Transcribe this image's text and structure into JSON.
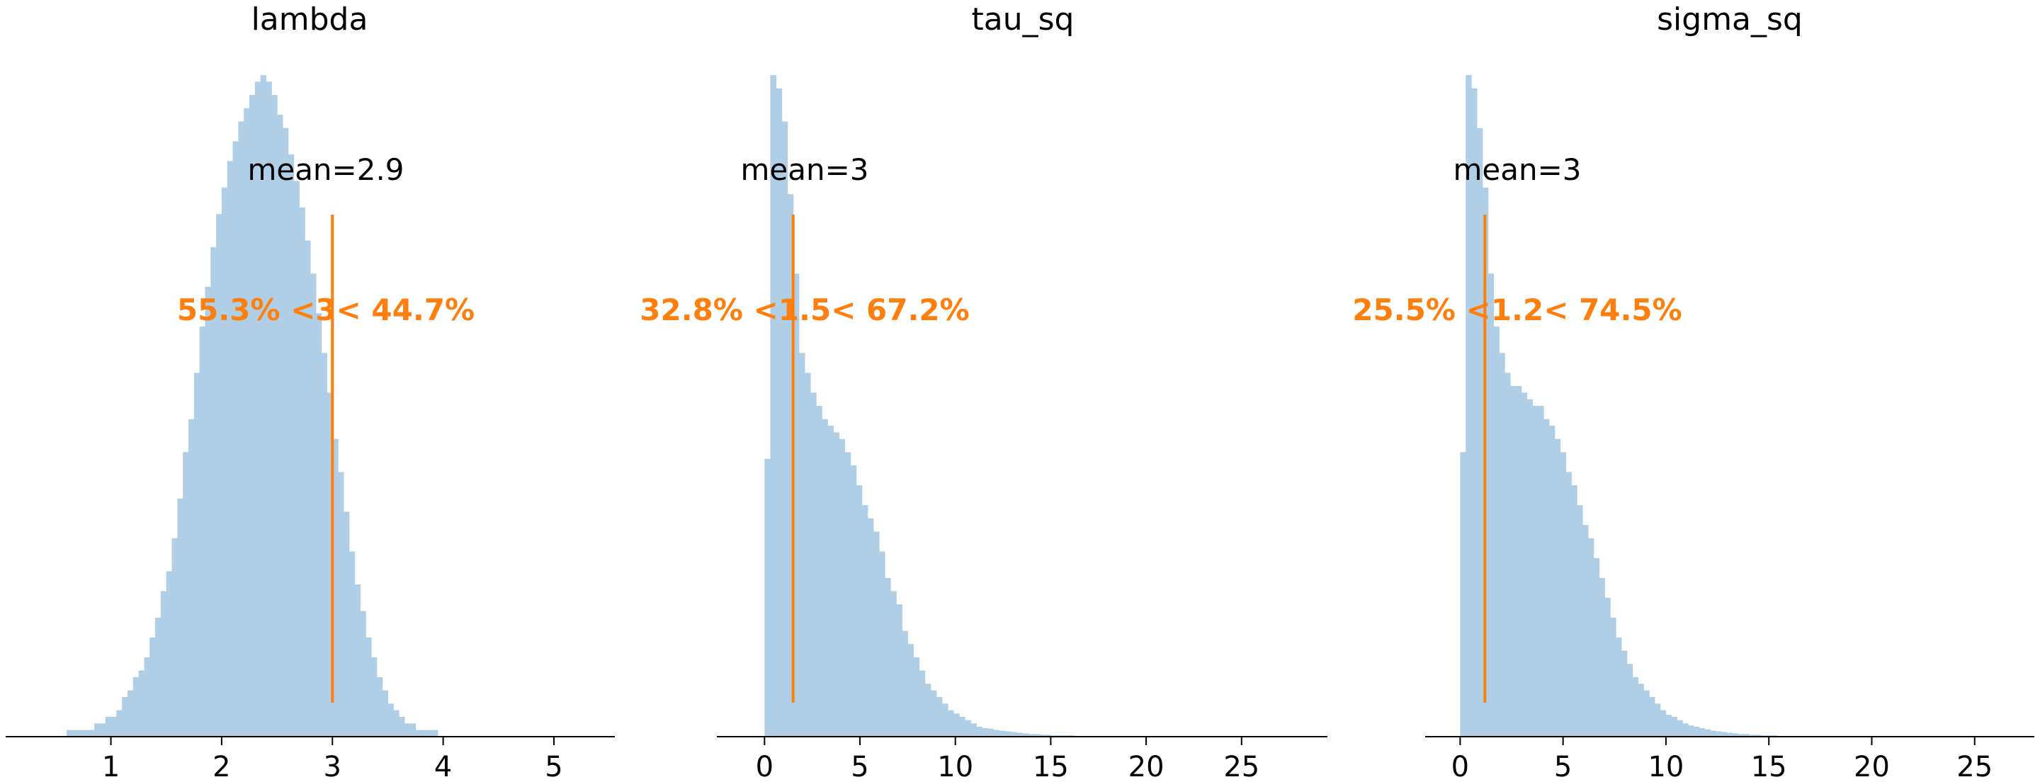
{
  "chart_data": [
    {
      "type": "bar",
      "title": "lambda",
      "xlabel": "",
      "ylabel": "",
      "xlim": [
        0.05,
        5.55
      ],
      "xticks": [
        1,
        2,
        3,
        4,
        5
      ],
      "bin_start": 0.3,
      "bin_width": 0.05,
      "values": [
        0.0,
        0.0,
        0.0,
        0.0,
        0.0,
        0.0,
        0.01,
        0.01,
        0.01,
        0.01,
        0.01,
        0.02,
        0.02,
        0.03,
        0.03,
        0.04,
        0.06,
        0.07,
        0.09,
        0.1,
        0.12,
        0.15,
        0.18,
        0.22,
        0.25,
        0.3,
        0.36,
        0.43,
        0.48,
        0.55,
        0.62,
        0.68,
        0.74,
        0.79,
        0.83,
        0.87,
        0.9,
        0.93,
        0.95,
        0.97,
        0.99,
        1.0,
        0.99,
        0.97,
        0.94,
        0.92,
        0.88,
        0.84,
        0.8,
        0.75,
        0.7,
        0.64,
        0.58,
        0.52,
        0.45,
        0.4,
        0.34,
        0.28,
        0.23,
        0.19,
        0.15,
        0.12,
        0.09,
        0.07,
        0.05,
        0.04,
        0.03,
        0.02,
        0.02,
        0.01,
        0.01,
        0.01,
        0.01,
        0.0,
        0.0,
        0.0,
        0.0,
        0.0,
        0.0,
        0.0,
        0.0,
        0.0,
        0.0,
        0.0,
        0.0,
        0.0,
        0.0,
        0.0,
        0.0,
        0.0,
        0.0,
        0.0,
        0.0,
        0.0,
        0.0,
        0.0,
        0.0,
        0.0,
        0.0,
        0.0
      ],
      "mean_label": "mean=2.9",
      "ref_value": 3,
      "ref_label": "55.3% <3< 44.7%",
      "hist_color": "#b0cfe6",
      "ref_color": "#ff7f0e"
    },
    {
      "type": "bar",
      "title": "tau_sq",
      "xlabel": "",
      "ylabel": "",
      "xlim": [
        -2.5,
        29.5
      ],
      "xticks": [
        0,
        5,
        10,
        15,
        20,
        25
      ],
      "bin_start": 0,
      "bin_width": 0.3,
      "values": [
        0.42,
        1.0,
        0.98,
        0.93,
        0.82,
        0.7,
        0.58,
        0.55,
        0.52,
        0.5,
        0.48,
        0.47,
        0.46,
        0.45,
        0.43,
        0.41,
        0.38,
        0.35,
        0.33,
        0.31,
        0.28,
        0.24,
        0.22,
        0.2,
        0.16,
        0.14,
        0.12,
        0.1,
        0.08,
        0.07,
        0.06,
        0.05,
        0.04,
        0.035,
        0.03,
        0.025,
        0.02,
        0.015,
        0.013,
        0.012,
        0.01,
        0.009,
        0.008,
        0.007,
        0.006,
        0.005,
        0.004,
        0.004,
        0.003,
        0.003,
        0.002,
        0.002,
        0.002,
        0.002,
        0.001,
        0.001,
        0.001,
        0.001,
        0.001,
        0.001,
        0.001,
        0.001,
        0.001,
        0.001,
        0.001,
        0.001,
        0.001,
        0.001,
        0.001,
        0.001
      ],
      "mean_label": "mean=3",
      "ref_value": 1.5,
      "ref_label": "32.8% <1.5< 67.2%",
      "hist_color": "#b0cfe6",
      "ref_color": "#ff7f0e"
    },
    {
      "type": "bar",
      "title": "sigma_sq",
      "xlabel": "",
      "ylabel": "",
      "xlim": [
        -1.7,
        27.9
      ],
      "xticks": [
        0,
        5,
        10,
        15,
        20,
        25
      ],
      "bin_start": 0,
      "bin_width": 0.27,
      "values": [
        0.43,
        1.0,
        0.98,
        0.92,
        0.83,
        0.7,
        0.62,
        0.58,
        0.55,
        0.53,
        0.53,
        0.52,
        0.51,
        0.5,
        0.5,
        0.48,
        0.47,
        0.45,
        0.43,
        0.4,
        0.38,
        0.35,
        0.32,
        0.3,
        0.27,
        0.24,
        0.21,
        0.18,
        0.15,
        0.13,
        0.11,
        0.09,
        0.08,
        0.07,
        0.06,
        0.05,
        0.04,
        0.033,
        0.03,
        0.025,
        0.02,
        0.017,
        0.015,
        0.013,
        0.011,
        0.009,
        0.008,
        0.007,
        0.006,
        0.005,
        0.004,
        0.004,
        0.003,
        0.003,
        0.002,
        0.002,
        0.002,
        0.001,
        0.001,
        0.001,
        0.001,
        0.001,
        0.001,
        0.001,
        0.001,
        0.001,
        0.001,
        0.001,
        0.001,
        0.001,
        0.001,
        0.001,
        0.001,
        0.001,
        0.001,
        0.001,
        0.001,
        0.001,
        0.001,
        0.001
      ],
      "mean_label": "mean=3",
      "ref_value": 1.2,
      "ref_label": "25.5% <1.2< 74.5%",
      "hist_color": "#b0cfe6",
      "ref_color": "#ff7f0e"
    }
  ]
}
